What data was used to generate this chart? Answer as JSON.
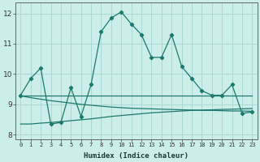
{
  "xlabel": "Humidex (Indice chaleur)",
  "bg_color": "#cceee8",
  "grid_color": "#aad8d2",
  "line_color": "#1a7a6e",
  "xlim": [
    -0.5,
    23.5
  ],
  "ylim": [
    7.85,
    12.35
  ],
  "xtick_labels": [
    "0",
    "1",
    "2",
    "3",
    "4",
    "5",
    "6",
    "7",
    "8",
    "9",
    "10",
    "11",
    "12",
    "13",
    "14",
    "15",
    "16",
    "17",
    "18",
    "19",
    "20",
    "21",
    "22",
    "23"
  ],
  "xtick_vals": [
    0,
    1,
    2,
    3,
    4,
    5,
    6,
    7,
    8,
    9,
    10,
    11,
    12,
    13,
    14,
    15,
    16,
    17,
    18,
    19,
    20,
    21,
    22,
    23
  ],
  "yticks": [
    8,
    9,
    10,
    11,
    12
  ],
  "line1_x": [
    0,
    1,
    2,
    3,
    4,
    5,
    6,
    7,
    8,
    9,
    10,
    11,
    12,
    13,
    14,
    15,
    16,
    17,
    18,
    19,
    20,
    21,
    22,
    23
  ],
  "line1_y": [
    9.3,
    9.85,
    10.2,
    8.35,
    8.4,
    9.55,
    8.6,
    9.65,
    11.4,
    11.85,
    12.05,
    11.65,
    11.3,
    10.55,
    10.55,
    11.3,
    10.25,
    9.85,
    9.45,
    9.3,
    9.3,
    9.65,
    8.7,
    8.75
  ],
  "line2_x": [
    0,
    19,
    23
  ],
  "line2_y": [
    9.3,
    9.3,
    9.3
  ],
  "line3_x": [
    0,
    1,
    2,
    3,
    4,
    5,
    6,
    7,
    8,
    9,
    10,
    11,
    12,
    13,
    14,
    15,
    16,
    17,
    18,
    19,
    20,
    21,
    22,
    23
  ],
  "line3_y": [
    8.35,
    8.35,
    8.38,
    8.4,
    8.43,
    8.46,
    8.49,
    8.52,
    8.56,
    8.6,
    8.63,
    8.66,
    8.69,
    8.72,
    8.74,
    8.76,
    8.78,
    8.8,
    8.81,
    8.82,
    8.83,
    8.84,
    8.85,
    8.86
  ],
  "line4_x": [
    0,
    1,
    2,
    3,
    4,
    5,
    6,
    7,
    8,
    9,
    10,
    11,
    12,
    13,
    14,
    15,
    16,
    17,
    18,
    19,
    20,
    21,
    22,
    23
  ],
  "line4_y": [
    9.28,
    9.22,
    9.17,
    9.12,
    9.08,
    9.04,
    9.0,
    8.97,
    8.94,
    8.91,
    8.89,
    8.87,
    8.86,
    8.85,
    8.84,
    8.83,
    8.82,
    8.81,
    8.8,
    8.8,
    8.79,
    8.78,
    8.78,
    8.77
  ]
}
